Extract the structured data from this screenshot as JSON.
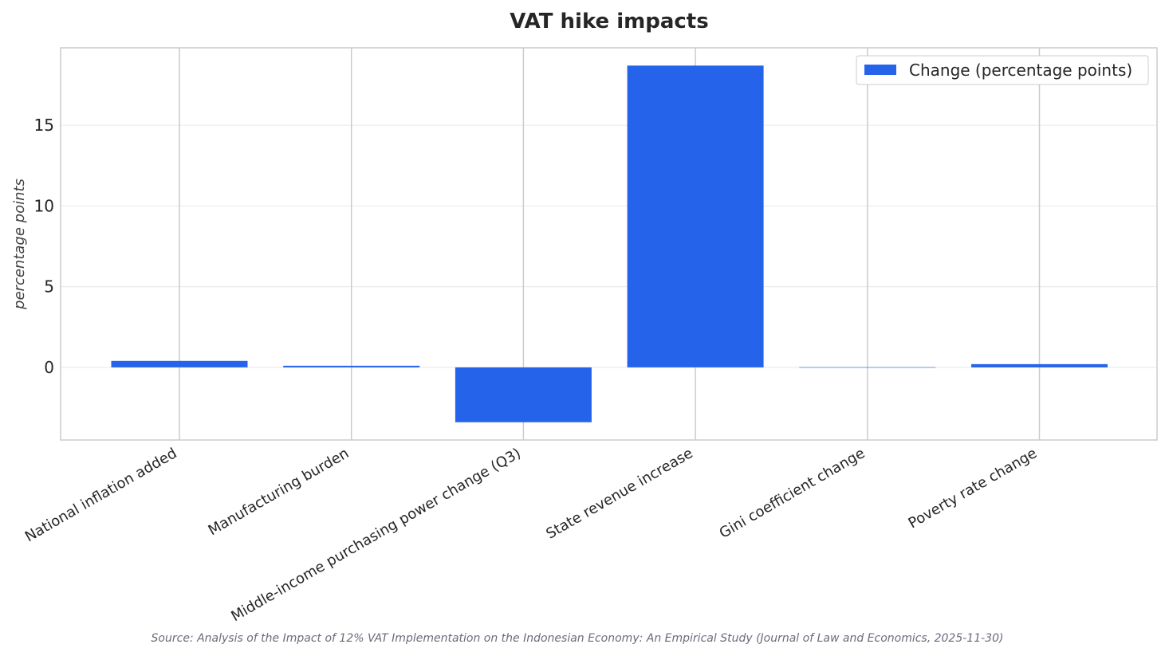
{
  "chart_data": {
    "type": "bar",
    "title": "VAT hike impacts",
    "ylabel": "percentage points",
    "xlabel": "",
    "categories": [
      "National inflation added",
      "Manufacturing burden",
      "Middle-income purchasing power change (Q3)",
      "State revenue increase",
      "Gini coefficient change",
      "Poverty rate change"
    ],
    "series": [
      {
        "name": "Change (percentage points)",
        "values": [
          0.4,
          0.1,
          -3.4,
          18.7,
          0.01,
          0.2
        ]
      }
    ],
    "ylim": [
      -4.5,
      19.8
    ],
    "yticks": [
      0,
      5,
      10,
      15
    ],
    "grid": true,
    "legend_position": "top-right",
    "colors": {
      "bar": "#2563eb",
      "grid_y": "#ebebeb",
      "grid_x": "#cccccc",
      "frame": "#cccccc"
    },
    "source": "Source: Analysis of the Impact of 12% VAT Implementation on the Indonesian Economy: An Empirical Study (Journal of Law and Economics, 2025-11-30)"
  }
}
